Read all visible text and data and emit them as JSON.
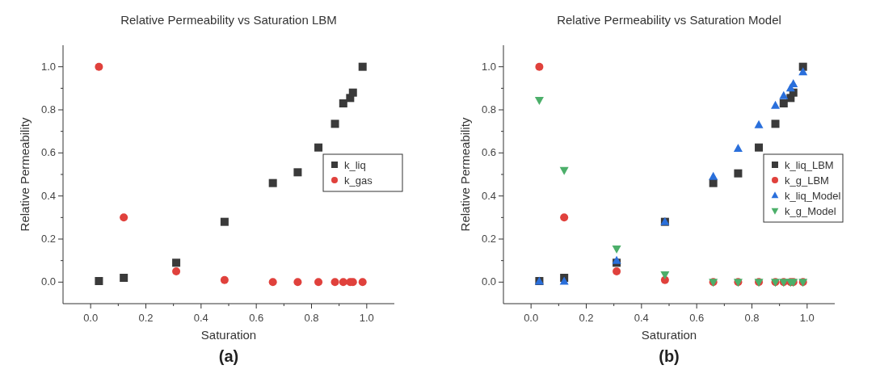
{
  "chart_data": [
    {
      "type": "scatter",
      "title": "Relative Permeability vs Saturation LBM",
      "xlabel": "Saturation",
      "ylabel": "Relative Permeability",
      "annotations": [
        "(a)"
      ],
      "xlim": [
        -0.1,
        1.1
      ],
      "ylim": [
        -0.1,
        1.1
      ],
      "xticks": [
        "0.0",
        {
          "value": 0.1,
          "label": null
        },
        {
          "value": 0.2,
          "label": "0.2"
        },
        {
          "value": 0.3,
          "label": null
        },
        {
          "value": 0.4,
          "label": "0.4"
        },
        {
          "value": 0.5,
          "label": null
        },
        {
          "value": 0.6,
          "label": "0.6"
        },
        {
          "value": 0.7,
          "label": null
        },
        {
          "value": 0.8,
          "label": "0.8"
        },
        {
          "value": 0.9,
          "label": null
        },
        {
          "value": 1,
          "label": "1.0"
        }
      ],
      "yticks": [
        {
          "value": 0,
          "label": "0.0"
        },
        {
          "value": 0.1,
          "label": null
        },
        {
          "value": 0.2,
          "label": "0.2"
        },
        {
          "value": 0.3,
          "label": null
        },
        {
          "value": 0.4,
          "label": "0.4"
        },
        {
          "value": 0.5,
          "label": null
        },
        {
          "value": 0.6,
          "label": "0.6"
        },
        {
          "value": 0.7,
          "label": null
        },
        {
          "value": 0.8,
          "label": "0.8"
        },
        {
          "value": 0.9,
          "label": null
        },
        {
          "value": 1,
          "label": "1.0"
        }
      ],
      "grid": false,
      "legend": "right",
      "x": [
        0.03,
        0.12,
        0.31,
        0.485,
        0.66,
        0.75,
        0.825,
        0.885,
        0.915,
        0.94,
        0.95,
        0.985
      ],
      "series": [
        {
          "name": "k_liq",
          "color": "#3a3a3a",
          "marker": "square",
          "values": [
            0.005,
            0.02,
            0.09,
            0.28,
            0.46,
            0.51,
            0.625,
            0.735,
            0.83,
            0.855,
            0.88,
            1.0
          ]
        },
        {
          "name": "k_gas",
          "color": "#e0413c",
          "marker": "circle",
          "values": [
            1.0,
            0.3,
            0.05,
            0.01,
            0,
            0,
            0,
            0,
            0,
            0,
            0,
            0
          ]
        }
      ]
    },
    {
      "type": "scatter",
      "title": "Relative Permeability vs Saturation Model",
      "xlabel": "Saturation",
      "ylabel": "Relative Permeability",
      "annotations": [
        "(b)"
      ],
      "xlim": [
        -0.1,
        1.1
      ],
      "ylim": [
        -0.1,
        1.1
      ],
      "xticks": [
        {
          "value": 0,
          "label": "0.0"
        },
        {
          "value": 0.1,
          "label": null
        },
        {
          "value": 0.2,
          "label": "0.2"
        },
        {
          "value": 0.3,
          "label": null
        },
        {
          "value": 0.4,
          "label": "0.4"
        },
        {
          "value": 0.5,
          "label": null
        },
        {
          "value": 0.6,
          "label": "0.6"
        },
        {
          "value": 0.7,
          "label": null
        },
        {
          "value": 0.8,
          "label": "0.8"
        },
        {
          "value": 0.9,
          "label": null
        },
        {
          "value": 1,
          "label": "1.0"
        }
      ],
      "yticks": [
        {
          "value": 0,
          "label": "0.0"
        },
        {
          "value": 0.1,
          "label": null
        },
        {
          "value": 0.2,
          "label": "0.2"
        },
        {
          "value": 0.3,
          "label": null
        },
        {
          "value": 0.4,
          "label": "0.4"
        },
        {
          "value": 0.5,
          "label": null
        },
        {
          "value": 0.6,
          "label": "0.6"
        },
        {
          "value": 0.7,
          "label": null
        },
        {
          "value": 0.8,
          "label": "0.8"
        },
        {
          "value": 0.9,
          "label": null
        },
        {
          "value": 1,
          "label": "1.0"
        }
      ],
      "grid": false,
      "legend": "right",
      "x": [
        0.03,
        0.12,
        0.31,
        0.485,
        0.66,
        0.75,
        0.825,
        0.885,
        0.915,
        0.94,
        0.95,
        0.985
      ],
      "series": [
        {
          "name": "k_liq_LBM",
          "color": "#3a3a3a",
          "marker": "square",
          "values": [
            0.005,
            0.02,
            0.09,
            0.28,
            0.46,
            0.505,
            0.625,
            0.735,
            0.83,
            0.855,
            0.88,
            1.0
          ]
        },
        {
          "name": "k_g_LBM",
          "color": "#e0413c",
          "marker": "circle",
          "values": [
            1.0,
            0.3,
            0.05,
            0.01,
            0,
            0,
            0,
            0,
            0,
            0,
            0,
            0
          ]
        },
        {
          "name": "k_liq_Model",
          "color": "#2a6fdb",
          "marker": "triangle",
          "values": [
            0.003,
            0.003,
            0.1,
            0.28,
            0.49,
            0.62,
            0.73,
            0.82,
            0.865,
            0.9,
            0.92,
            0.975
          ]
        },
        {
          "name": "k_g_Model",
          "color": "#4caf6a",
          "marker": "triangle-down",
          "values": [
            0.845,
            0.52,
            0.155,
            0.035,
            0,
            0,
            0,
            0,
            0,
            0,
            0,
            0
          ]
        }
      ]
    }
  ]
}
